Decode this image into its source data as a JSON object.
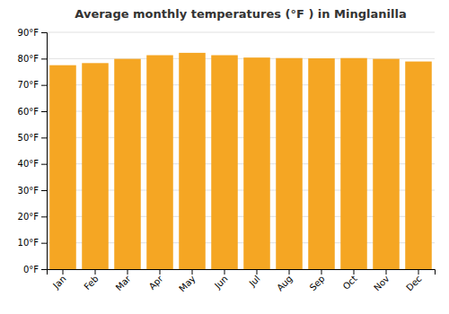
{
  "chart_data": {
    "type": "bar",
    "title": "Average monthly temperatures (°F ) in Minglanilla",
    "categories": [
      "Jan",
      "Feb",
      "Mar",
      "Apr",
      "May",
      "Jun",
      "Jul",
      "Aug",
      "Sep",
      "Oct",
      "Nov",
      "Dec"
    ],
    "values": [
      77.5,
      78.3,
      79.9,
      81.3,
      82.2,
      81.3,
      80.4,
      80.2,
      80.1,
      80.2,
      79.9,
      78.9
    ],
    "color": "#F5A623",
    "ylim": [
      0,
      90
    ],
    "yticks": [
      {
        "value": 0,
        "label": "0°F"
      },
      {
        "value": 10,
        "label": "10°F"
      },
      {
        "value": 20,
        "label": "20°F"
      },
      {
        "value": 30,
        "label": "30°F"
      },
      {
        "value": 40,
        "label": "40°F"
      },
      {
        "value": 50,
        "label": "50°F"
      },
      {
        "value": 60,
        "label": "60°F"
      },
      {
        "value": 70,
        "label": "70°F"
      },
      {
        "value": 80,
        "label": "80°F"
      },
      {
        "value": 90,
        "label": "90°F"
      }
    ],
    "grid": true
  }
}
